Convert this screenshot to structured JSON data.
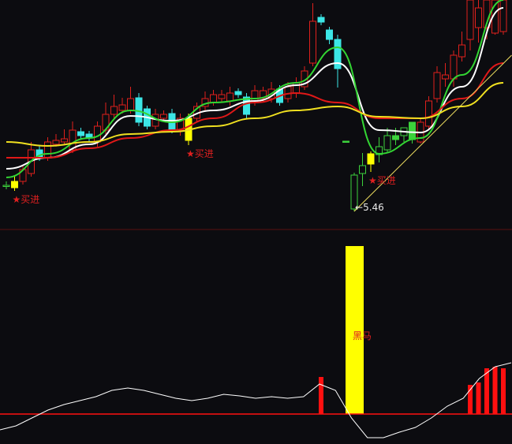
{
  "chart_data": [
    {
      "type": "candlestick",
      "title": "",
      "colors": {
        "up": "#e0201c",
        "down": "#3ce6e6",
        "low_zone_up": "#3cd23c",
        "low_zone_down": "#3cd23c",
        "buy": "#ffff00",
        "background": "#0c0c10"
      },
      "candles": [
        [
          5.79,
          5.84,
          5.74,
          5.79,
          "green-up"
        ],
        [
          5.76,
          5.9,
          5.72,
          5.84,
          "buy"
        ],
        [
          5.84,
          6.04,
          5.8,
          5.99,
          "up"
        ],
        [
          5.94,
          6.34,
          5.9,
          6.24,
          "up"
        ],
        [
          6.24,
          6.3,
          6.1,
          6.14,
          "down"
        ],
        [
          6.14,
          6.4,
          6.1,
          6.34,
          "up"
        ],
        [
          6.31,
          6.44,
          6.28,
          6.36,
          "up"
        ],
        [
          6.34,
          6.5,
          6.3,
          6.38,
          "up"
        ],
        [
          6.24,
          6.6,
          6.2,
          6.49,
          "up"
        ],
        [
          6.47,
          6.52,
          6.38,
          6.42,
          "down"
        ],
        [
          6.44,
          6.48,
          6.34,
          6.39,
          "down"
        ],
        [
          6.34,
          6.6,
          6.28,
          6.54,
          "up"
        ],
        [
          6.49,
          6.84,
          6.44,
          6.69,
          "up"
        ],
        [
          6.69,
          6.94,
          6.64,
          6.79,
          "up"
        ],
        [
          6.74,
          6.9,
          6.7,
          6.81,
          "up"
        ],
        [
          6.74,
          7.04,
          6.7,
          6.89,
          "up"
        ],
        [
          6.9,
          6.96,
          6.54,
          6.59,
          "down"
        ],
        [
          6.76,
          6.8,
          6.5,
          6.54,
          "down"
        ],
        [
          6.54,
          6.76,
          6.5,
          6.69,
          "up"
        ],
        [
          6.64,
          6.74,
          6.6,
          6.69,
          "up"
        ],
        [
          6.7,
          6.76,
          6.45,
          6.49,
          "down"
        ],
        [
          6.49,
          6.7,
          6.42,
          6.64,
          "up"
        ],
        [
          6.64,
          6.7,
          6.3,
          6.36,
          "buy"
        ],
        [
          6.64,
          6.84,
          6.6,
          6.79,
          "up"
        ],
        [
          6.79,
          6.98,
          6.74,
          6.89,
          "up"
        ],
        [
          6.84,
          7.0,
          6.8,
          6.94,
          "up"
        ],
        [
          6.89,
          7.0,
          6.84,
          6.94,
          "up"
        ],
        [
          6.86,
          7.04,
          6.8,
          6.96,
          "up"
        ],
        [
          6.98,
          7.02,
          6.9,
          6.94,
          "down"
        ],
        [
          6.91,
          6.96,
          6.64,
          6.69,
          "down"
        ],
        [
          6.84,
          7.06,
          6.8,
          6.99,
          "up"
        ],
        [
          6.89,
          7.04,
          6.84,
          6.99,
          "up"
        ],
        [
          6.89,
          7.1,
          6.84,
          7.01,
          "up"
        ],
        [
          7.01,
          7.06,
          6.8,
          6.84,
          "down"
        ],
        [
          6.89,
          7.1,
          6.84,
          7.04,
          "up"
        ],
        [
          6.96,
          7.16,
          6.9,
          7.09,
          "up"
        ],
        [
          7.04,
          7.3,
          7.0,
          7.24,
          "up"
        ],
        [
          7.34,
          8.1,
          7.3,
          7.87,
          "up"
        ],
        [
          7.92,
          7.96,
          7.82,
          7.86,
          "down"
        ],
        [
          7.76,
          7.8,
          7.58,
          7.64,
          "down"
        ],
        [
          7.64,
          7.7,
          7.03,
          7.27,
          "down"
        ],
        [
          6.35,
          6.35,
          6.33,
          6.34,
          "green-down"
        ],
        [
          5.49,
          5.95,
          5.46,
          5.92,
          "green-up"
        ],
        [
          5.94,
          6.2,
          5.78,
          6.04,
          "green-up"
        ],
        [
          6.19,
          6.22,
          5.96,
          6.06,
          "buy"
        ],
        [
          6.18,
          6.4,
          6.08,
          6.28,
          "green-up"
        ],
        [
          6.24,
          6.52,
          6.2,
          6.42,
          "green-up"
        ],
        [
          6.42,
          6.52,
          6.3,
          6.37,
          "green-down"
        ],
        [
          6.42,
          6.52,
          6.34,
          6.52,
          "green-up"
        ],
        [
          6.59,
          6.59,
          6.32,
          6.37,
          "green-down"
        ],
        [
          6.34,
          6.64,
          6.32,
          6.59,
          "up"
        ],
        [
          6.54,
          6.92,
          6.5,
          6.86,
          "up"
        ],
        [
          6.89,
          7.3,
          6.84,
          7.22,
          "up"
        ],
        [
          7.14,
          7.34,
          7.04,
          7.19,
          "up"
        ],
        [
          7.14,
          7.5,
          7.04,
          7.44,
          "up"
        ],
        [
          7.42,
          7.74,
          7.36,
          7.57,
          "up"
        ],
        [
          7.64,
          8.14,
          7.5,
          8.14,
          "up"
        ],
        [
          7.79,
          8.14,
          7.6,
          8.04,
          "up"
        ],
        [
          7.79,
          8.14,
          7.64,
          8.14,
          "up"
        ],
        [
          7.72,
          8.14,
          7.7,
          8.14,
          "up"
        ],
        [
          7.74,
          8.14,
          7.7,
          8.14,
          "up"
        ]
      ],
      "moving_averages": {
        "sample_every_n_candles": 5,
        "lines": [
          {
            "color": "#ffffff",
            "values": [
              6.0,
              6.14,
              6.31,
              6.67,
              6.61,
              6.74,
              6.86,
              7.06,
              7.34,
              6.49,
              6.46,
              7.04,
              8.04
            ]
          },
          {
            "color": "#33d633",
            "values": [
              5.89,
              6.19,
              6.39,
              6.74,
              6.59,
              6.84,
              6.89,
              7.09,
              7.54,
              6.19,
              6.39,
              7.19,
              8.14
            ]
          },
          {
            "color": "#e01818",
            "values": [
              6.14,
              6.14,
              6.26,
              6.39,
              6.49,
              6.64,
              6.84,
              6.96,
              6.84,
              6.64,
              6.64,
              6.89,
              7.34
            ]
          },
          {
            "color": "#f0e020",
            "values": [
              6.34,
              6.29,
              6.34,
              6.44,
              6.47,
              6.54,
              6.64,
              6.74,
              6.79,
              6.66,
              6.64,
              6.79,
              7.09
            ]
          }
        ]
      },
      "trend_line": {
        "color": "#f0e060",
        "from": {
          "candle": 42,
          "price": 5.46
        },
        "to": {
          "candle": 61,
          "price": 7.44
        }
      },
      "low_annotation": {
        "candle": 42,
        "price": 5.46,
        "text": "5.46",
        "arrow": "←"
      },
      "buy_signals": [
        {
          "candle": 1,
          "star": "★",
          "text": "买进"
        },
        {
          "candle": 22,
          "star": "★",
          "text": "买进"
        },
        {
          "candle": 44,
          "star": "★",
          "text": "买进"
        }
      ]
    },
    {
      "type": "indicator",
      "title": "",
      "oscillator": {
        "color": "#ffffff",
        "values": [
          -20,
          -15,
          -5,
          5,
          12,
          17,
          22,
          30,
          33,
          30,
          25,
          20,
          17,
          20,
          25,
          23,
          20,
          22,
          20,
          22,
          38,
          30,
          -5,
          -30,
          -30,
          -23,
          -17,
          -5,
          10,
          20,
          45,
          60,
          65
        ]
      },
      "baseline": {
        "value": 0,
        "color": "#ff1010"
      },
      "red_bars": [
        {
          "candle": 38,
          "value": 47
        },
        {
          "candle": 56,
          "value": 37
        },
        {
          "candle": 57,
          "value": 40
        },
        {
          "candle": 58,
          "value": 58
        },
        {
          "candle": 59,
          "value": 60
        },
        {
          "candle": 60,
          "value": 58
        }
      ],
      "signal_bar": {
        "candle": 42,
        "value": 213,
        "color": "#ffff00",
        "label": "黑马"
      }
    }
  ]
}
